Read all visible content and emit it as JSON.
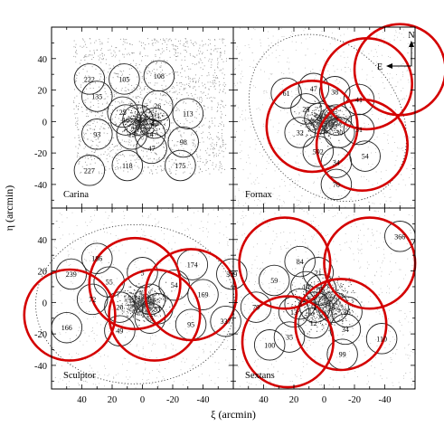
{
  "chart_data": {
    "type": "scatter",
    "title": "",
    "xlabel": "ξ (arcmin)",
    "ylabel": "η (arcmin)",
    "xlim": [
      60,
      -60
    ],
    "ylim": [
      -55,
      60
    ],
    "x_ticks": [
      "40",
      "20",
      "0",
      "-20",
      "-40"
    ],
    "y_ticks": [
      "40",
      "20",
      "0",
      "-20",
      "-40"
    ],
    "grid": false,
    "fields_circle_radius_arcmin": 10,
    "large_circle_radius_arcmin": 30,
    "compass": {
      "north": "N",
      "east": "E"
    },
    "panels": [
      {
        "name": "Carina",
        "fields": [
          {
            "label": "222",
            "x": 35,
            "y": 27
          },
          {
            "label": "105",
            "x": 12,
            "y": 27
          },
          {
            "label": "108",
            "x": -11,
            "y": 29
          },
          {
            "label": "135",
            "x": 30,
            "y": 16
          },
          {
            "label": "26",
            "x": -10,
            "y": 10
          },
          {
            "label": "113",
            "x": -30,
            "y": 5
          },
          {
            "label": "25",
            "x": 13,
            "y": 6
          },
          {
            "label": "16",
            "x": 11,
            "y": 1
          },
          {
            "label": "5",
            "x": 3,
            "y": 1
          },
          {
            "label": "42",
            "x": -8,
            "y": -1
          },
          {
            "label": "93",
            "x": 30,
            "y": -8
          },
          {
            "label": "13",
            "x": 7,
            "y": -8
          },
          {
            "label": "14",
            "x": -5,
            "y": -8
          },
          {
            "label": "98",
            "x": -27,
            "y": -13
          },
          {
            "label": "47",
            "x": -6,
            "y": -17
          },
          {
            "label": "118",
            "x": 10,
            "y": -28
          },
          {
            "label": "227",
            "x": 35,
            "y": -31
          },
          {
            "label": "175",
            "x": -25,
            "y": -28
          }
        ]
      },
      {
        "name": "Fornax",
        "fields": [
          {
            "label": "61",
            "x": 25,
            "y": 18
          },
          {
            "label": "47",
            "x": 7,
            "y": 21
          },
          {
            "label": "38",
            "x": -7,
            "y": 19
          },
          {
            "label": "41",
            "x": -23,
            "y": 14
          },
          {
            "label": "29",
            "x": 12,
            "y": 8
          },
          {
            "label": "2",
            "x": 3,
            "y": 2
          },
          {
            "label": "7",
            "x": -8,
            "y": 1
          },
          {
            "label": "32",
            "x": 16,
            "y": -7
          },
          {
            "label": "30",
            "x": -10,
            "y": -7
          },
          {
            "label": "31",
            "x": -23,
            "y": -5
          },
          {
            "label": "592",
            "x": 4,
            "y": -19
          },
          {
            "label": "34",
            "x": -8,
            "y": -26
          },
          {
            "label": "54",
            "x": -27,
            "y": -22
          },
          {
            "label": "70",
            "x": -8,
            "y": -40
          }
        ],
        "large_circles": [
          {
            "x": 8,
            "y": -3
          },
          {
            "x": -28,
            "y": 24
          },
          {
            "x": -50,
            "y": 33
          },
          {
            "x": -25,
            "y": -15
          }
        ]
      },
      {
        "name": "Sculptor",
        "fields": [
          {
            "label": "186",
            "x": 30,
            "y": 28
          },
          {
            "label": "239",
            "x": 47,
            "y": 18
          },
          {
            "label": "55",
            "x": 22,
            "y": 13
          },
          {
            "label": "5",
            "x": 0,
            "y": 19
          },
          {
            "label": "174",
            "x": -33,
            "y": 24
          },
          {
            "label": "389",
            "x": -59,
            "y": 18
          },
          {
            "label": "72",
            "x": 33,
            "y": 2
          },
          {
            "label": "54",
            "x": -21,
            "y": 11
          },
          {
            "label": "20",
            "x": 15,
            "y": -3
          },
          {
            "label": "9",
            "x": -5,
            "y": 2
          },
          {
            "label": "31",
            "x": -10,
            "y": -4
          },
          {
            "label": "169",
            "x": -40,
            "y": 5
          },
          {
            "label": "166",
            "x": 50,
            "y": -16
          },
          {
            "label": "49",
            "x": 15,
            "y": -18
          },
          {
            "label": "15",
            "x": -5,
            "y": -10
          },
          {
            "label": "95",
            "x": -32,
            "y": -14
          },
          {
            "label": "337",
            "x": -55,
            "y": -12
          }
        ],
        "large_circles": [
          {
            "x": 48,
            "y": -8
          },
          {
            "x": 5,
            "y": 12
          },
          {
            "x": -8,
            "y": -8
          },
          {
            "x": -32,
            "y": 5
          }
        ]
      },
      {
        "name": "Sextans",
        "fields": [
          {
            "label": "366",
            "x": -50,
            "y": 42
          },
          {
            "label": "84",
            "x": 16,
            "y": 26
          },
          {
            "label": "21",
            "x": 4,
            "y": 19
          },
          {
            "label": "59",
            "x": 33,
            "y": 14
          },
          {
            "label": "14",
            "x": 12,
            "y": 10
          },
          {
            "label": "16",
            "x": 2,
            "y": 8
          },
          {
            "label": "79",
            "x": 45,
            "y": -3
          },
          {
            "label": "8",
            "x": 16,
            "y": -1
          },
          {
            "label": "13",
            "x": 20,
            "y": -6
          },
          {
            "label": "1",
            "x": 6,
            "y": -3
          },
          {
            "label": "3",
            "x": -6,
            "y": -3
          },
          {
            "label": "36",
            "x": -15,
            "y": -6
          },
          {
            "label": "12",
            "x": 7,
            "y": -13
          },
          {
            "label": "35",
            "x": 23,
            "y": -22
          },
          {
            "label": "34",
            "x": -14,
            "y": -17
          },
          {
            "label": "100",
            "x": 36,
            "y": -27
          },
          {
            "label": "110",
            "x": -38,
            "y": -23
          },
          {
            "label": "99",
            "x": -12,
            "y": -33
          }
        ],
        "large_circles": [
          {
            "x": 26,
            "y": 25
          },
          {
            "x": -30,
            "y": 25
          },
          {
            "x": 24,
            "y": -25
          },
          {
            "x": -11,
            "y": -14
          }
        ]
      }
    ]
  }
}
